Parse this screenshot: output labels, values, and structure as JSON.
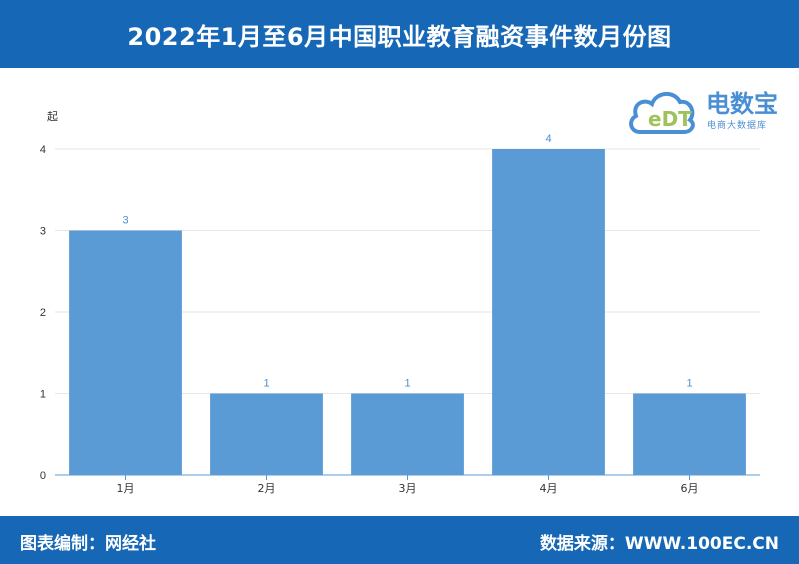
{
  "header": {
    "title": "2022年1月至6月中国职业教育融资事件数月份图"
  },
  "footer": {
    "left": "图表编制：网经社",
    "right": "数据来源：WWW.100EC.CN"
  },
  "logo": {
    "mark": "eDT",
    "name": "电数宝",
    "tagline": "电商大数据库"
  },
  "colors": {
    "band": "#1667b5",
    "bar": "#5b9bd5",
    "label": "#4a8fd4"
  },
  "chart_data": {
    "type": "bar",
    "title": "2022年1月至6月中国职业教育融资事件数月份图",
    "ylabel": "起",
    "xlabel": "",
    "categories": [
      "1月",
      "2月",
      "3月",
      "4月",
      "6月"
    ],
    "values": [
      3,
      1,
      1,
      4,
      1
    ],
    "ylim": [
      0,
      4
    ],
    "yticks": [
      0,
      1,
      2,
      3,
      4
    ],
    "grid": true,
    "legend": "none"
  }
}
